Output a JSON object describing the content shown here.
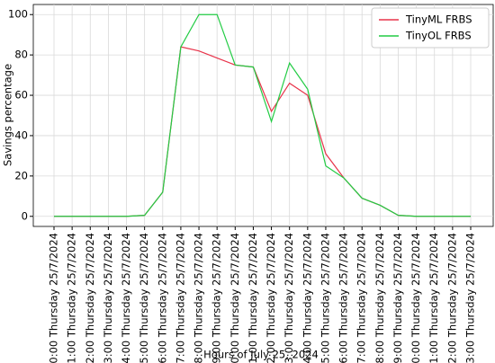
{
  "chart_data": {
    "type": "line",
    "xlabel": "Hours of July 25, 2024",
    "ylabel": "Savings percentage",
    "categories": [
      "0:00 Thursday 25/7/2024",
      "1:00 Thursday 25/7/2024",
      "2:00 Thursday 25/7/2024",
      "3:00 Thursday 25/7/2024",
      "4:00 Thursday 25/7/2024",
      "5:00 Thursday 25/7/2024",
      "6:00 Thursday 25/7/2024",
      "7:00 Thursday 25/7/2024",
      "8:00 Thursday 25/7/2024",
      "9:00 Thursday 25/7/2024",
      "10:00 Thursday 25/7/2024",
      "11:00 Thursday 25/7/2024",
      "12:00 Thursday 25/7/2024",
      "13:00 Thursday 25/7/2024",
      "14:00 Thursday 25/7/2024",
      "15:00 Thursday 25/7/2024",
      "16:00 Thursday 25/7/2024",
      "17:00 Thursday 25/7/2024",
      "18:00 Thursday 25/7/2024",
      "19:00 Thursday 25/7/2024",
      "20:00 Thursday 25/7/2024",
      "21:00 Thursday 25/7/2024",
      "22:00 Thursday 25/7/2024",
      "23:00 Thursday 25/7/2024"
    ],
    "series": [
      {
        "name": "TinyML FRBS",
        "color": "#e8334a",
        "values": [
          0,
          0,
          0,
          0,
          0,
          0.5,
          12,
          84,
          82,
          78.5,
          75,
          74,
          52,
          66,
          60,
          31,
          19,
          9,
          5.5,
          0.5,
          0,
          0,
          0,
          0
        ]
      },
      {
        "name": "TinyOL FRBS",
        "color": "#22cc44",
        "values": [
          0,
          0,
          0,
          0,
          0,
          0.5,
          12,
          84,
          100,
          100,
          75,
          74,
          47,
          76,
          63,
          25,
          19,
          9,
          5.5,
          0.5,
          0,
          0,
          0,
          0
        ]
      }
    ],
    "ylim": [
      -5,
      105
    ],
    "yticks": [
      0,
      20,
      40,
      60,
      80,
      100
    ],
    "grid": true,
    "legend": "upper right"
  }
}
